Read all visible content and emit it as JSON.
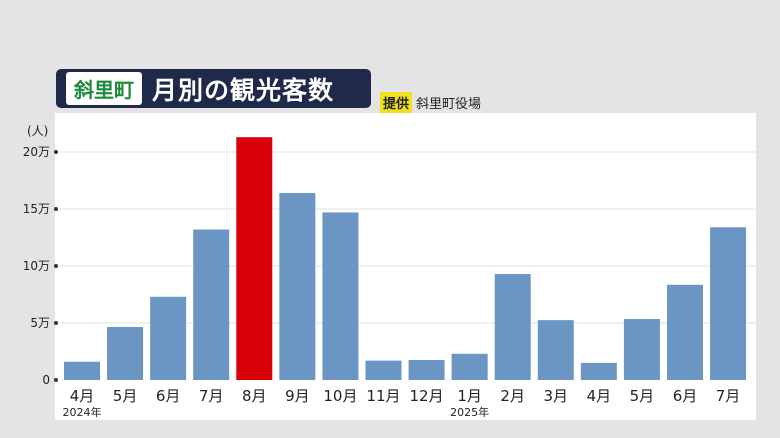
{
  "header": {
    "town": "斜里町",
    "title": "月別の観光客数",
    "source_tag": "提供",
    "source": "斜里町役場"
  },
  "chart_data": {
    "type": "bar",
    "title": "月別の観光客数",
    "ylabel": "(人)",
    "ylim": [
      0,
      200000
    ],
    "yticks": [
      {
        "v": 0,
        "label": "0"
      },
      {
        "v": 50000,
        "label": "5万"
      },
      {
        "v": 100000,
        "label": "10万"
      },
      {
        "v": 150000,
        "label": "15万"
      },
      {
        "v": 200000,
        "label": "20万"
      }
    ],
    "categories": [
      "4月",
      "5月",
      "6月",
      "7月",
      "8月",
      "9月",
      "10月",
      "11月",
      "12月",
      "1月",
      "2月",
      "3月",
      "4月",
      "5月",
      "6月",
      "7月"
    ],
    "values": [
      16000,
      46500,
      73000,
      132000,
      213000,
      164000,
      147000,
      17000,
      17500,
      23000,
      93000,
      52500,
      15000,
      53500,
      83500,
      134000
    ],
    "highlight_index": 4,
    "year_labels": [
      {
        "index": 0,
        "label": "2024年"
      },
      {
        "index": 9,
        "label": "2025年"
      }
    ],
    "colors": {
      "bar": "#6b95c2",
      "highlight": "#d90009"
    },
    "grid": true
  }
}
